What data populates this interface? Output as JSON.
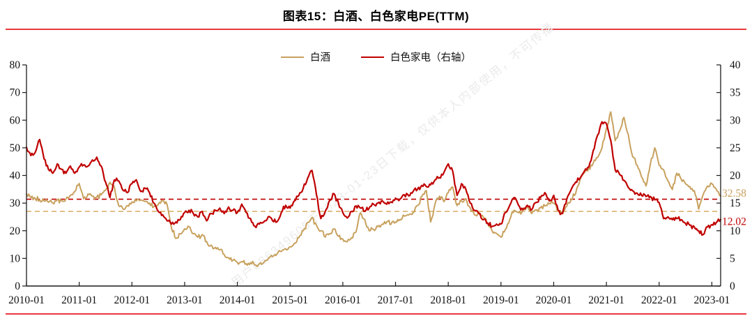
{
  "header": {
    "title": "图表15：白酒、白色家电PE(TTM)"
  },
  "rules": {
    "color": "#E8383C"
  },
  "watermark": {
    "text": "用户686349605于2023-01-23日下载，仅供本人内部使用，不可传播",
    "color": "#ebebeb"
  },
  "legend": {
    "items": [
      {
        "label": "白酒",
        "color": "#C8A15E"
      },
      {
        "label": "白色家电（右轴）",
        "color": "#C00000"
      }
    ]
  },
  "chart_data": {
    "type": "line",
    "title": "图表15：白酒、白色家电PE(TTM)",
    "x_start": "2010-01",
    "x_step_months": 1,
    "x_tick_labels": [
      "2010-01",
      "2011-01",
      "2012-01",
      "2013-01",
      "2014-01",
      "2015-01",
      "2016-01",
      "2017-01",
      "2018-01",
      "2019-01",
      "2020-01",
      "2021-01",
      "2022-01",
      "2023-01"
    ],
    "left_axis": {
      "min": 0,
      "max": 80,
      "tick_step": 10,
      "ticks": [
        "0",
        "10",
        "20",
        "30",
        "40",
        "50",
        "60",
        "70",
        "80"
      ]
    },
    "right_axis": {
      "min": 0,
      "max": 40,
      "tick_step": 5,
      "ticks": [
        "0",
        "5",
        "10",
        "15",
        "20",
        "25",
        "30",
        "35",
        "40"
      ]
    },
    "grid": false,
    "legend_position": "top-center",
    "series": [
      {
        "name": "白酒",
        "axis": "left",
        "color": "#C8A15E",
        "values": [
          33.3,
          32.0,
          31.6,
          31.2,
          30.8,
          30.3,
          30.0,
          31.2,
          30.8,
          31.6,
          32.8,
          34.2,
          37.1,
          31.6,
          33.3,
          32.5,
          32.1,
          33.0,
          34.6,
          37.5,
          35.8,
          29.1,
          27.8,
          29.1,
          30.4,
          30.8,
          31.2,
          30.6,
          30.0,
          28.7,
          29.5,
          30.8,
          29.5,
          21.0,
          17.2,
          18.9,
          20.7,
          21.5,
          19.0,
          17.7,
          18.6,
          16.1,
          14.8,
          14.0,
          13.1,
          11.4,
          10.2,
          9.3,
          8.5,
          8.8,
          8.1,
          8.5,
          7.6,
          8.1,
          8.5,
          9.8,
          10.6,
          11.5,
          12.5,
          13.5,
          14.2,
          15.5,
          17.5,
          20.0,
          23.0,
          24.8,
          22.0,
          20.0,
          17.7,
          19.0,
          20.7,
          18.0,
          17.0,
          16.0,
          17.5,
          19.5,
          26.5,
          24.0,
          20.0,
          20.5,
          21.5,
          22.4,
          23.2,
          22.4,
          23.2,
          24.1,
          25.3,
          25.7,
          26.6,
          29.1,
          32.4,
          34.6,
          23.2,
          29.8,
          32.5,
          30.5,
          33.8,
          35.8,
          29.1,
          30.8,
          31.6,
          28.3,
          25.7,
          26.6,
          24.9,
          22.4,
          19.9,
          19.0,
          17.7,
          20.5,
          24.0,
          27.4,
          26.5,
          27.5,
          29.1,
          26.2,
          27.5,
          28.3,
          29.0,
          29.8,
          30.0,
          27.5,
          26.2,
          29.0,
          31.5,
          33.5,
          38.5,
          41.0,
          42.5,
          44.5,
          46.5,
          50.0,
          57.0,
          63.0,
          52.6,
          56.0,
          61.0,
          54.7,
          46.7,
          43.7,
          39.5,
          36.2,
          44.0,
          50.0,
          43.7,
          42.1,
          38.0,
          34.9,
          40.8,
          38.7,
          37.0,
          36.0,
          34.5,
          27.8,
          33.0,
          36.2,
          37.0,
          35.0,
          32.58
        ]
      },
      {
        "name": "白色家电（右轴）",
        "axis": "right",
        "color": "#C00000",
        "values": [
          25.1,
          23.6,
          24.2,
          26.5,
          23.0,
          21.1,
          20.4,
          22.1,
          21.1,
          20.4,
          21.7,
          20.4,
          21.5,
          21.9,
          21.7,
          22.8,
          23.3,
          21.7,
          18.8,
          16.0,
          19.2,
          19.0,
          17.3,
          16.9,
          18.5,
          19.2,
          17.1,
          17.7,
          16.9,
          15.0,
          13.5,
          12.9,
          11.8,
          11.2,
          11.6,
          12.0,
          13.3,
          13.7,
          13.1,
          12.5,
          13.5,
          11.8,
          13.1,
          13.7,
          14.1,
          13.1,
          14.3,
          13.7,
          13.3,
          14.8,
          13.3,
          12.2,
          10.8,
          11.2,
          11.6,
          12.5,
          11.8,
          11.6,
          13.3,
          14.6,
          14.1,
          15.4,
          16.4,
          17.7,
          19.5,
          20.9,
          16.5,
          12.2,
          13.5,
          15.5,
          16.7,
          15.0,
          13.3,
          12.3,
          13.5,
          14.5,
          14.1,
          13.5,
          14.1,
          14.8,
          15.0,
          15.4,
          14.8,
          15.2,
          15.9,
          15.7,
          16.5,
          16.3,
          17.1,
          17.5,
          18.2,
          18.0,
          18.3,
          19.2,
          19.6,
          20.5,
          22.1,
          20.8,
          16.4,
          18.5,
          17.5,
          15.0,
          13.7,
          13.1,
          12.0,
          11.4,
          10.8,
          11.2,
          11.2,
          13.3,
          14.6,
          16.0,
          14.6,
          13.8,
          14.6,
          13.8,
          15.1,
          16.0,
          16.9,
          15.4,
          16.4,
          13.7,
          13.1,
          15.8,
          17.5,
          18.8,
          19.5,
          20.8,
          21.5,
          24.5,
          27.3,
          29.7,
          29.4,
          26.3,
          21.0,
          20.2,
          19.1,
          17.8,
          17.2,
          16.8,
          16.4,
          16.2,
          16.2,
          15.6,
          15.1,
          12.2,
          12.5,
          12.0,
          12.2,
          12.0,
          11.3,
          11.0,
          10.7,
          10.0,
          9.3,
          10.7,
          11.1,
          11.5,
          12.02
        ]
      }
    ],
    "reference_lines": [
      {
        "name": "baijiu-mean",
        "axis": "left",
        "value": 27.0,
        "style": "dashed",
        "color": "#DDB87A"
      },
      {
        "name": "appliance-mean",
        "axis": "right",
        "value": 15.7,
        "style": "dashed",
        "color": "#C00000"
      }
    ],
    "end_labels": [
      {
        "text": "32.58",
        "axis": "left",
        "value": 32.58,
        "color": "#C8A15E"
      },
      {
        "text": "12.02",
        "axis": "right",
        "value": 12.02,
        "color": "#C00000"
      }
    ]
  }
}
